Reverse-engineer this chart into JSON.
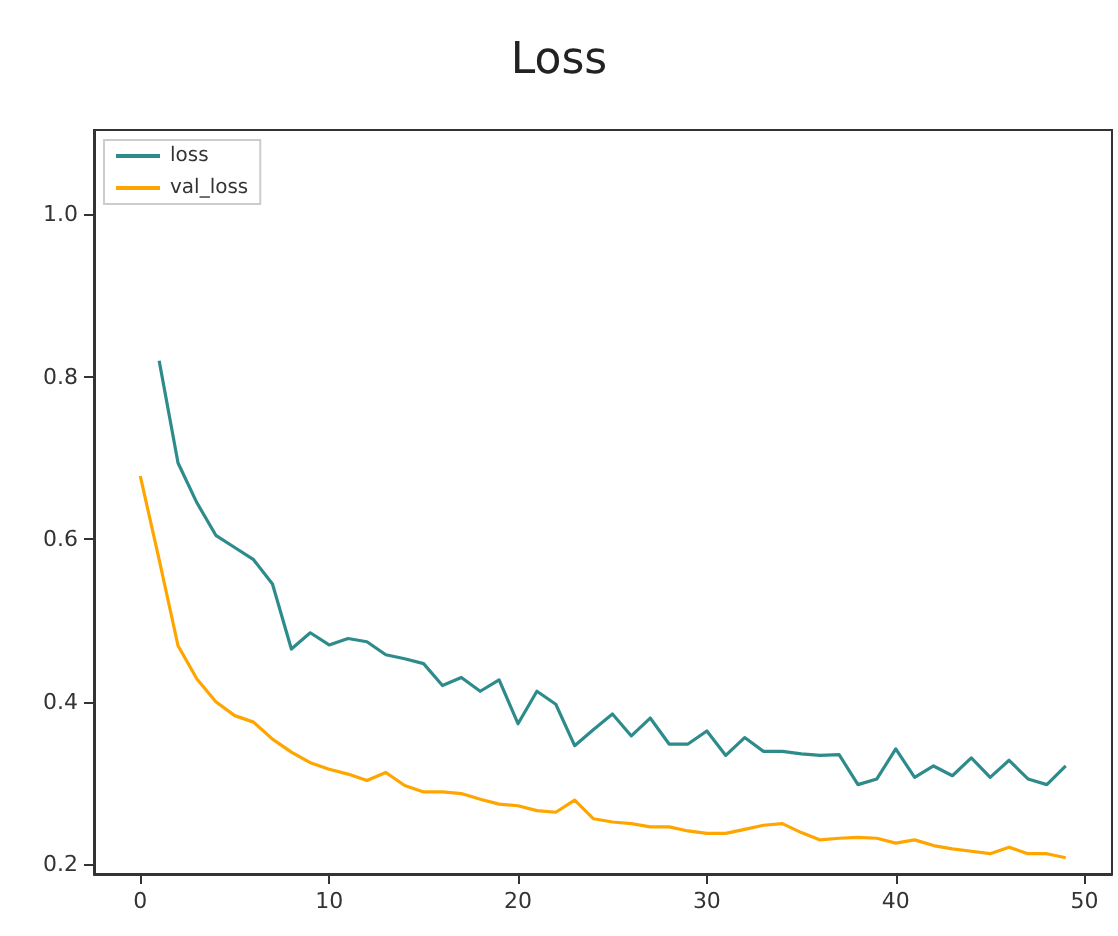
{
  "chart_data": {
    "type": "line",
    "title": "Loss",
    "x": [
      0,
      1,
      2,
      3,
      4,
      5,
      6,
      7,
      8,
      9,
      10,
      11,
      12,
      13,
      14,
      15,
      16,
      17,
      18,
      19,
      20,
      21,
      22,
      23,
      24,
      25,
      26,
      27,
      28,
      29,
      30,
      31,
      32,
      33,
      34,
      35,
      36,
      37,
      38,
      39,
      40,
      41,
      42,
      43,
      44,
      45,
      46,
      47,
      48,
      49
    ],
    "series": [
      {
        "name": "loss",
        "color": "#2e8b8b",
        "values": [
          null,
          0.82,
          0.694,
          0.645,
          0.605,
          0.59,
          0.575,
          0.545,
          0.465,
          0.485,
          0.47,
          0.478,
          0.474,
          0.458,
          0.453,
          0.447,
          0.42,
          0.43,
          0.413,
          0.427,
          0.373,
          0.413,
          0.397,
          0.346,
          0.366,
          0.385,
          0.358,
          0.38,
          0.348,
          0.348,
          0.364,
          0.334,
          0.356,
          0.339,
          0.339,
          0.336,
          0.334,
          0.335,
          0.298,
          0.305,
          0.342,
          0.307,
          0.321,
          0.309,
          0.331,
          0.307,
          0.328,
          0.305,
          0.298,
          0.321
        ]
      },
      {
        "name": "val_loss",
        "color": "#ffa500",
        "values": [
          0.678,
          0.575,
          0.469,
          0.428,
          0.4,
          0.383,
          0.375,
          0.354,
          0.338,
          0.325,
          0.317,
          0.311,
          0.303,
          0.313,
          0.297,
          0.289,
          0.289,
          0.287,
          0.28,
          0.274,
          0.272,
          0.266,
          0.264,
          0.279,
          0.256,
          0.252,
          0.25,
          0.246,
          0.246,
          0.241,
          0.238,
          0.238,
          0.243,
          0.248,
          0.25,
          0.239,
          0.23,
          0.232,
          0.233,
          0.232,
          0.226,
          0.23,
          0.223,
          0.219,
          0.216,
          0.213,
          0.221,
          0.213,
          0.213,
          0.208
        ]
      }
    ],
    "xlim": [
      -2.45,
      51.45
    ],
    "ylim": [
      0.188,
      1.104
    ],
    "xticks": [
      0,
      10,
      20,
      30,
      40,
      50
    ],
    "yticks": [
      0.2,
      0.4,
      0.6,
      0.8,
      {
        "value": 1,
        "label": "1.0"
      }
    ],
    "legend": "top left",
    "grid": false,
    "marker": "none",
    "line_style": "solid"
  }
}
